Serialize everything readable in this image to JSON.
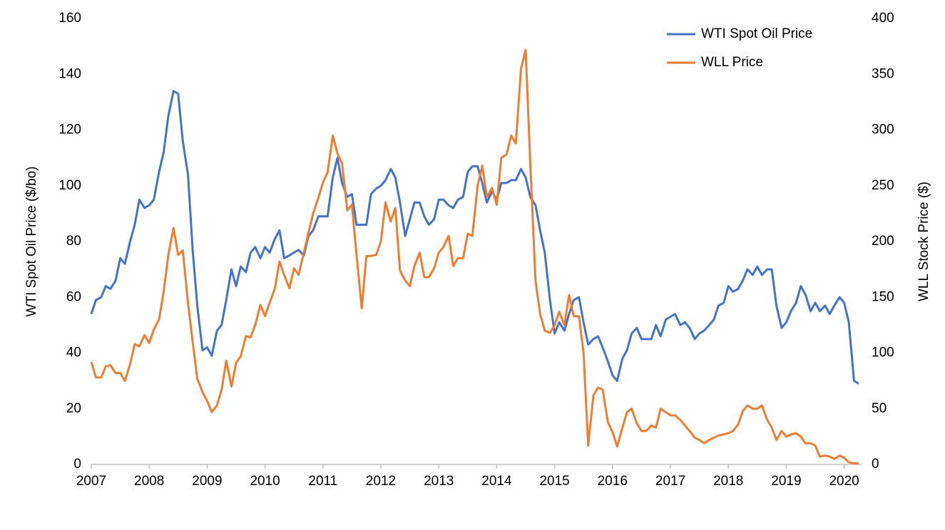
{
  "chart_data": {
    "type": "line",
    "x": [
      2007,
      2007.08,
      2007.17,
      2007.25,
      2007.33,
      2007.42,
      2007.5,
      2007.58,
      2007.67,
      2007.75,
      2007.83,
      2007.92,
      2008,
      2008.08,
      2008.17,
      2008.25,
      2008.33,
      2008.42,
      2008.5,
      2008.58,
      2008.67,
      2008.75,
      2008.83,
      2008.92,
      2009,
      2009.08,
      2009.17,
      2009.25,
      2009.33,
      2009.42,
      2009.5,
      2009.58,
      2009.67,
      2009.75,
      2009.83,
      2009.92,
      2010,
      2010.08,
      2010.17,
      2010.25,
      2010.33,
      2010.42,
      2010.5,
      2010.58,
      2010.67,
      2010.75,
      2010.83,
      2010.92,
      2011,
      2011.08,
      2011.17,
      2011.25,
      2011.33,
      2011.42,
      2011.5,
      2011.58,
      2011.67,
      2011.75,
      2011.83,
      2011.92,
      2012,
      2012.08,
      2012.17,
      2012.25,
      2012.33,
      2012.42,
      2012.5,
      2012.58,
      2012.67,
      2012.75,
      2012.83,
      2012.92,
      2013,
      2013.08,
      2013.17,
      2013.25,
      2013.33,
      2013.42,
      2013.5,
      2013.58,
      2013.67,
      2013.75,
      2013.83,
      2013.92,
      2014,
      2014.08,
      2014.17,
      2014.25,
      2014.33,
      2014.42,
      2014.5,
      2014.58,
      2014.67,
      2014.75,
      2014.83,
      2014.92,
      2015,
      2015.08,
      2015.17,
      2015.25,
      2015.33,
      2015.42,
      2015.5,
      2015.58,
      2015.67,
      2015.75,
      2015.83,
      2015.92,
      2016,
      2016.08,
      2016.17,
      2016.25,
      2016.33,
      2016.42,
      2016.5,
      2016.58,
      2016.67,
      2016.75,
      2016.83,
      2016.92,
      2017,
      2017.08,
      2017.17,
      2017.25,
      2017.33,
      2017.42,
      2017.5,
      2017.58,
      2017.67,
      2017.75,
      2017.83,
      2017.92,
      2018,
      2018.08,
      2018.17,
      2018.25,
      2018.33,
      2018.42,
      2018.5,
      2018.58,
      2018.67,
      2018.75,
      2018.83,
      2018.92,
      2019,
      2019.08,
      2019.17,
      2019.25,
      2019.33,
      2019.42,
      2019.5,
      2019.58,
      2019.67,
      2019.75,
      2019.83,
      2019.92,
      2020,
      2020.08,
      2020.17,
      2020.25
    ],
    "series": [
      {
        "name": "WTI Spot Oil Price",
        "color": "#4472c4",
        "values": [
          54,
          59,
          60,
          64,
          63,
          66,
          74,
          72,
          80,
          86,
          95,
          92,
          93,
          95,
          105,
          112,
          125,
          134,
          133,
          116,
          104,
          77,
          57,
          41,
          42,
          39,
          48,
          50,
          59,
          70,
          64,
          71,
          69,
          76,
          78,
          74,
          78,
          76,
          81,
          84,
          74,
          75,
          76,
          77,
          75,
          82,
          84,
          89,
          89,
          89,
          103,
          110,
          101,
          96,
          97,
          86,
          86,
          86,
          97,
          99,
          100,
          102,
          106,
          103,
          94,
          82,
          88,
          94,
          94,
          89,
          86,
          88,
          95,
          95,
          93,
          92,
          95,
          96,
          105,
          107,
          107,
          101,
          94,
          98,
          95,
          101,
          101,
          102,
          102,
          106,
          103,
          96,
          93,
          84,
          76,
          59,
          47,
          51,
          48,
          54,
          59,
          60,
          51,
          43,
          45,
          46,
          42,
          37,
          32,
          30,
          38,
          41,
          47,
          49,
          45,
          45,
          45,
          50,
          46,
          52,
          53,
          54,
          50,
          51,
          49,
          45,
          47,
          48,
          50,
          52,
          57,
          58,
          64,
          62,
          63,
          66,
          70,
          68,
          71,
          68,
          70,
          70,
          57,
          49,
          51,
          55,
          58,
          64,
          61,
          55,
          58,
          55,
          57,
          54,
          57,
          60,
          58,
          51,
          30,
          29
        ]
      },
      {
        "name": "WLL Price",
        "color": "#ed7d31",
        "axis": "y2",
        "values": [
          92,
          78,
          78,
          88,
          89,
          82,
          82,
          75,
          90,
          108,
          106,
          116,
          109,
          121,
          130,
          155,
          188,
          212,
          188,
          192,
          145,
          110,
          77,
          65,
          57,
          47,
          53,
          67,
          93,
          70,
          91,
          97,
          115,
          114,
          125,
          143,
          133,
          145,
          158,
          182,
          170,
          158,
          176,
          170,
          190,
          208,
          225,
          239,
          253,
          262,
          295,
          279,
          270,
          228,
          233,
          188,
          140,
          187,
          187,
          188,
          200,
          235,
          218,
          230,
          174,
          165,
          160,
          178,
          190,
          168,
          168,
          176,
          190,
          195,
          205,
          178,
          185,
          185,
          207,
          205,
          250,
          268,
          240,
          248,
          233,
          275,
          278,
          295,
          288,
          355,
          372,
          270,
          165,
          135,
          120,
          118,
          125,
          137,
          125,
          152,
          133,
          133,
          100,
          17,
          62,
          69,
          67,
          38,
          29,
          16,
          33,
          47,
          50,
          37,
          30,
          30,
          35,
          33,
          50,
          47,
          44,
          44,
          40,
          35,
          30,
          24,
          22,
          19,
          22,
          24,
          26,
          27,
          28,
          30,
          36,
          48,
          53,
          50,
          50,
          53,
          40,
          33,
          22,
          30,
          25,
          27,
          28,
          25,
          19,
          19,
          17,
          7,
          8,
          7,
          5,
          8,
          6,
          2,
          1,
          1
        ]
      }
    ],
    "ylabel": "WTI Spot Oil Price ($/bo)",
    "y2label": "WLL Stock Price ($)",
    "xlim": [
      2007,
      2020.3
    ],
    "xticks": [
      2007,
      2008,
      2009,
      2010,
      2011,
      2012,
      2013,
      2014,
      2015,
      2016,
      2017,
      2018,
      2019,
      2020
    ],
    "ylim": [
      0,
      160
    ],
    "yticks": [
      0,
      20,
      40,
      60,
      80,
      100,
      120,
      140,
      160
    ],
    "y2lim": [
      0,
      400
    ],
    "y2ticks": [
      0,
      50,
      100,
      150,
      200,
      250,
      300,
      350,
      400
    ],
    "legend": "top-right",
    "grid": false
  }
}
